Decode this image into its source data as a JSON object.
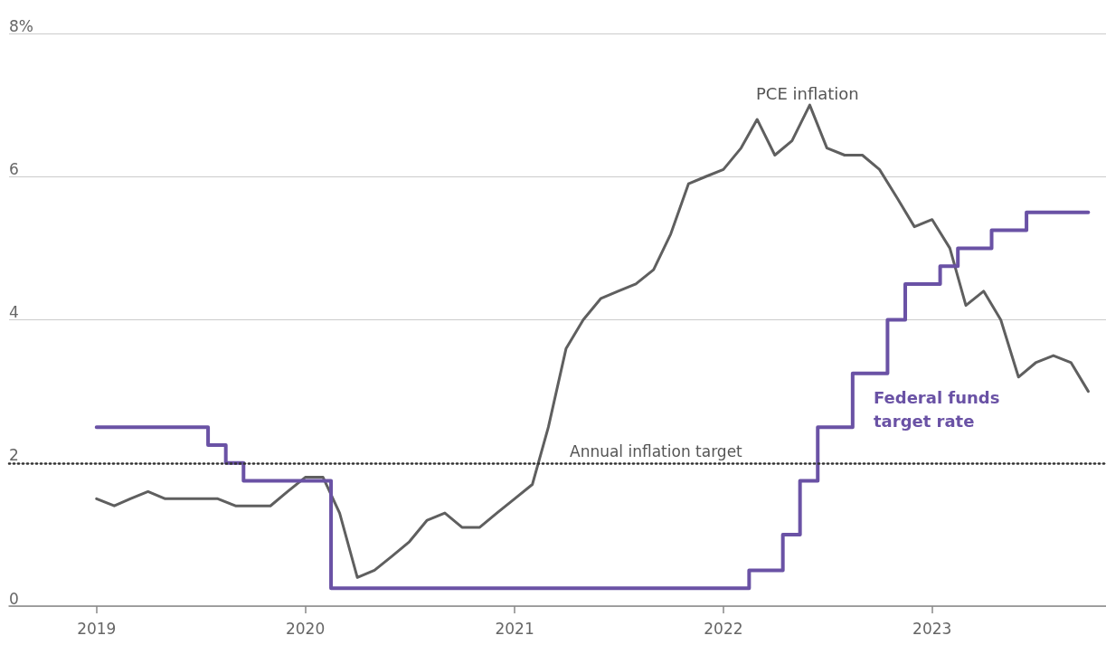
{
  "chart_data": {
    "type": "line",
    "xlim": [
      "2018-08",
      "2023-11"
    ],
    "xticks": [
      "2019",
      "2020",
      "2021",
      "2022",
      "2023"
    ],
    "ylim": [
      0,
      8
    ],
    "yticks": [
      0,
      2,
      4,
      6,
      {
        "value": 8,
        "label": "8%"
      }
    ],
    "grid": "y",
    "legend": false,
    "marker": "none",
    "series": [
      {
        "name": "PCE inflation",
        "color": "#5f5f5f",
        "x": [
          "2019-01",
          "2019-02",
          "2019-03",
          "2019-04",
          "2019-05",
          "2019-06",
          "2019-07",
          "2019-08",
          "2019-09",
          "2019-10",
          "2019-11",
          "2019-12",
          "2020-01",
          "2020-02",
          "2020-03",
          "2020-04",
          "2020-05",
          "2020-06",
          "2020-07",
          "2020-08",
          "2020-09",
          "2020-10",
          "2020-11",
          "2020-12",
          "2021-01",
          "2021-02",
          "2021-03",
          "2021-04",
          "2021-05",
          "2021-06",
          "2021-07",
          "2021-08",
          "2021-09",
          "2021-10",
          "2021-11",
          "2021-12",
          "2022-01",
          "2022-02",
          "2022-03",
          "2022-04",
          "2022-05",
          "2022-06",
          "2022-07",
          "2022-08",
          "2022-09",
          "2022-10",
          "2022-11",
          "2022-12",
          "2023-01",
          "2023-02",
          "2023-03",
          "2023-04",
          "2023-05",
          "2023-06",
          "2023-07",
          "2023-08",
          "2023-09",
          "2023-10"
        ],
        "values": [
          1.5,
          1.4,
          1.5,
          1.6,
          1.5,
          1.5,
          1.5,
          1.5,
          1.4,
          1.4,
          1.4,
          1.6,
          1.8,
          1.8,
          1.3,
          0.4,
          0.5,
          0.7,
          0.9,
          1.2,
          1.3,
          1.1,
          1.1,
          1.3,
          1.5,
          1.7,
          2.5,
          3.6,
          4.0,
          4.3,
          4.4,
          4.5,
          4.7,
          5.2,
          5.9,
          6.0,
          6.1,
          6.4,
          6.8,
          6.3,
          6.5,
          7.0,
          6.4,
          6.3,
          6.3,
          6.1,
          5.7,
          5.3,
          5.4,
          5.0,
          4.2,
          4.4,
          4.0,
          3.2,
          3.4,
          3.5,
          3.4,
          3.0
        ]
      },
      {
        "name": "Federal funds target rate",
        "type": "step",
        "color": "#6a52a5",
        "x": [
          "2019-01",
          "2019-07-15",
          "2019-08-15",
          "2019-09-15",
          "2020-02-15",
          "2022-02-15",
          "2022-04-15",
          "2022-05-15",
          "2022-06-15",
          "2022-08-15",
          "2022-10-15",
          "2022-11-15",
          "2023-01-15",
          "2023-02-15",
          "2023-04-15",
          "2023-06-15",
          "2023-10"
        ],
        "values": [
          2.5,
          2.25,
          2.0,
          1.75,
          0.25,
          0.5,
          1.0,
          1.75,
          2.5,
          3.25,
          4.0,
          4.5,
          4.75,
          5.0,
          5.25,
          5.5,
          5.5
        ]
      }
    ],
    "ref_lines": [
      {
        "axis": "y",
        "value": 2,
        "label": "Annual inflation target",
        "color": "#333333",
        "line_style": "dotted"
      }
    ]
  }
}
